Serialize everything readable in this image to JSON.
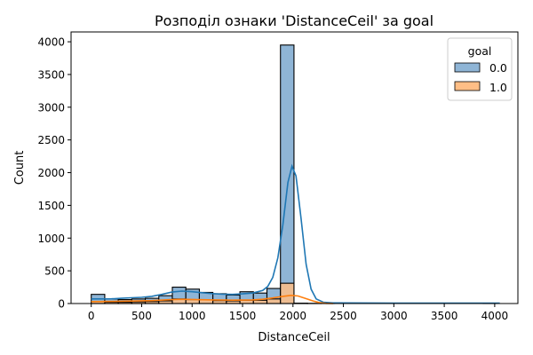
{
  "chart_data": {
    "type": "histogram",
    "title": "Розподіл ознаки 'DistanceCeil' за goal",
    "xlabel": "DistanceCeil",
    "ylabel": "Count",
    "xlim": [
      -200,
      4230
    ],
    "ylim": [
      0,
      4150
    ],
    "xticks": [
      0,
      500,
      1000,
      1500,
      2000,
      2500,
      3000,
      3500,
      4000
    ],
    "yticks": [
      0,
      500,
      1000,
      1500,
      2000,
      2500,
      3000,
      3500,
      4000
    ],
    "grid": false,
    "legend": {
      "title": "goal",
      "position": "top-right"
    },
    "bin_width": 134,
    "bin_start": 0,
    "series": [
      {
        "name": "0.0",
        "color": "#1f77b4",
        "bar_fill": "#8fb5d6",
        "counts": [
          140,
          70,
          60,
          70,
          80,
          120,
          250,
          220,
          170,
          150,
          130,
          180,
          160,
          230,
          3950,
          5,
          2,
          2,
          0,
          0,
          0,
          0,
          0,
          0,
          0,
          0,
          0,
          0,
          0,
          1
        ],
        "kde": [
          [
            0,
            70
          ],
          [
            100,
            70
          ],
          [
            200,
            72
          ],
          [
            300,
            80
          ],
          [
            400,
            88
          ],
          [
            500,
            95
          ],
          [
            600,
            110
          ],
          [
            700,
            140
          ],
          [
            800,
            175
          ],
          [
            900,
            190
          ],
          [
            1000,
            180
          ],
          [
            1100,
            165
          ],
          [
            1200,
            152
          ],
          [
            1300,
            142
          ],
          [
            1400,
            140
          ],
          [
            1500,
            148
          ],
          [
            1600,
            160
          ],
          [
            1700,
            200
          ],
          [
            1750,
            260
          ],
          [
            1800,
            400
          ],
          [
            1850,
            700
          ],
          [
            1900,
            1200
          ],
          [
            1950,
            1850
          ],
          [
            1990,
            2100
          ],
          [
            2030,
            1950
          ],
          [
            2080,
            1300
          ],
          [
            2130,
            600
          ],
          [
            2180,
            220
          ],
          [
            2230,
            70
          ],
          [
            2300,
            20
          ],
          [
            2400,
            10
          ],
          [
            3000,
            5
          ],
          [
            4050,
            5
          ]
        ]
      },
      {
        "name": "1.0",
        "color": "#ff7f0e",
        "bar_fill": "#ffbe86",
        "counts": [
          30,
          20,
          20,
          25,
          30,
          40,
          70,
          60,
          55,
          45,
          40,
          50,
          50,
          70,
          310,
          2,
          1,
          0,
          0,
          0,
          0,
          0,
          0,
          0,
          0,
          0,
          0,
          0,
          0,
          0
        ],
        "kde": [
          [
            0,
            30
          ],
          [
            200,
            32
          ],
          [
            400,
            38
          ],
          [
            600,
            45
          ],
          [
            800,
            60
          ],
          [
            900,
            65
          ],
          [
            1000,
            62
          ],
          [
            1200,
            55
          ],
          [
            1400,
            52
          ],
          [
            1600,
            55
          ],
          [
            1700,
            65
          ],
          [
            1800,
            85
          ],
          [
            1900,
            110
          ],
          [
            1980,
            125
          ],
          [
            2050,
            115
          ],
          [
            2130,
            75
          ],
          [
            2200,
            40
          ],
          [
            2260,
            15
          ],
          [
            2330,
            3
          ],
          [
            2400,
            0
          ]
        ]
      }
    ]
  }
}
